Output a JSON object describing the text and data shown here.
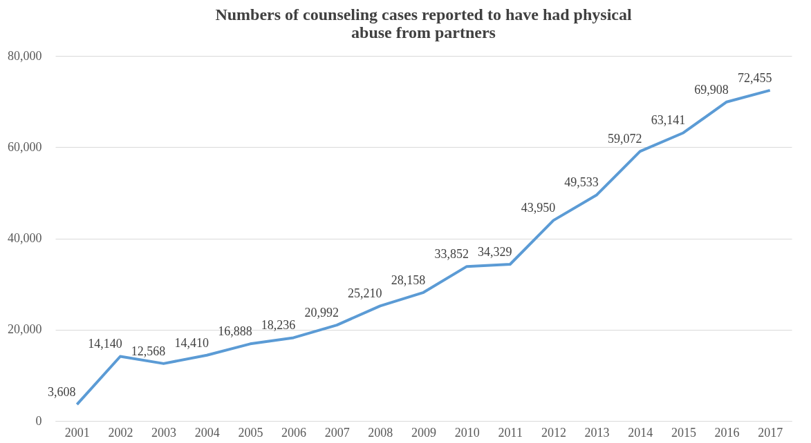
{
  "chart_data": {
    "type": "line",
    "title": "Numbers of counseling cases reported to have had physical abuse from partners",
    "categories": [
      "2001",
      "2002",
      "2003",
      "2004",
      "2005",
      "2006",
      "2007",
      "2008",
      "2009",
      "2010",
      "2011",
      "2012",
      "2013",
      "2014",
      "2015",
      "2016",
      "2017"
    ],
    "series": [
      {
        "color": "#5b9bd5",
        "values": [
          3608,
          14140,
          12568,
          14410,
          16888,
          18236,
          20992,
          25210,
          28158,
          33852,
          34329,
          43950,
          49533,
          59072,
          63141,
          69908,
          72455
        ],
        "value_labels": [
          "3,608",
          "14,140",
          "12,568",
          "14,410",
          "16,888",
          "18,236",
          "20,992",
          "25,210",
          "28,158",
          "33,852",
          "34,329",
          "43,950",
          "49,533",
          "59,072",
          "63,141",
          "69,908",
          "72,455"
        ]
      }
    ],
    "ylim": [
      0,
      80000
    ],
    "yticks": [
      0,
      {
        "value": 20000,
        "label": "20,000"
      },
      {
        "value": 40000,
        "label": "40,000"
      },
      {
        "value": 60000,
        "label": "60,000"
      },
      {
        "value": 80000,
        "label": "80,000"
      }
    ],
    "grid": "y",
    "legend": false,
    "marker": "none",
    "line_style": "solid"
  }
}
